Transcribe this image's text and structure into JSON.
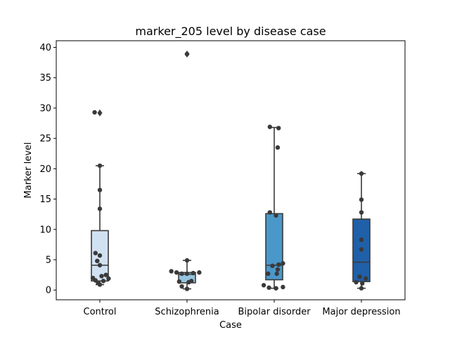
{
  "chart_data": {
    "type": "box",
    "title": "marker_205 level by disease case",
    "xlabel": "Case",
    "ylabel": "Marker level",
    "ylim": [
      -1.6,
      41.1
    ],
    "yticks": [
      0,
      5,
      10,
      15,
      20,
      25,
      30,
      35,
      40
    ],
    "grid": false,
    "categories": [
      "Control",
      "Schizophrenia",
      "Bipolar disorder",
      "Major depression"
    ],
    "colors": [
      "#d0e1f2",
      "#94c4df",
      "#4a98c9",
      "#2060a8"
    ],
    "boxes": [
      {
        "q1": 1.5,
        "median": 4.1,
        "q3": 9.8,
        "whisker_low": 0.9,
        "whisker_high": 20.5,
        "outliers": [
          29.2
        ]
      },
      {
        "q1": 1.2,
        "median": 2.6,
        "q3": 2.9,
        "whisker_low": 0.2,
        "whisker_high": 4.9,
        "outliers": [
          38.9
        ]
      },
      {
        "q1": 1.7,
        "median": 4.1,
        "q3": 12.6,
        "whisker_low": 0.3,
        "whisker_high": 26.8,
        "outliers": []
      },
      {
        "q1": 1.4,
        "median": 4.6,
        "q3": 11.7,
        "whisker_low": 0.3,
        "whisker_high": 19.2,
        "outliers": []
      }
    ],
    "points": [
      [
        {
          "dx": -0.06,
          "y": 29.3
        },
        {
          "dx": 0.0,
          "y": 20.5
        },
        {
          "dx": 0.0,
          "y": 16.5
        },
        {
          "dx": 0.0,
          "y": 13.4
        },
        {
          "dx": -0.05,
          "y": 6.1
        },
        {
          "dx": 0.0,
          "y": 5.7
        },
        {
          "dx": -0.03,
          "y": 4.8
        },
        {
          "dx": 0.0,
          "y": 4.1
        },
        {
          "dx": 0.07,
          "y": 2.5
        },
        {
          "dx": 0.02,
          "y": 2.3
        },
        {
          "dx": -0.08,
          "y": 2.0
        },
        {
          "dx": 0.1,
          "y": 1.9
        },
        {
          "dx": -0.05,
          "y": 1.6
        },
        {
          "dx": 0.04,
          "y": 1.5
        },
        {
          "dx": -0.02,
          "y": 1.2
        },
        {
          "dx": 0.0,
          "y": 0.9
        }
      ],
      [
        {
          "dx": 0.0,
          "y": 38.9
        },
        {
          "dx": 0.0,
          "y": 4.9
        },
        {
          "dx": -0.18,
          "y": 3.1
        },
        {
          "dx": -0.12,
          "y": 2.9
        },
        {
          "dx": 0.14,
          "y": 2.9
        },
        {
          "dx": -0.06,
          "y": 2.7
        },
        {
          "dx": 0.0,
          "y": 2.7
        },
        {
          "dx": 0.07,
          "y": 2.8
        },
        {
          "dx": -0.09,
          "y": 1.4
        },
        {
          "dx": 0.02,
          "y": 1.3
        },
        {
          "dx": 0.05,
          "y": 1.5
        },
        {
          "dx": -0.06,
          "y": 0.6
        },
        {
          "dx": 0.0,
          "y": 0.2
        }
      ],
      [
        {
          "dx": -0.05,
          "y": 26.9
        },
        {
          "dx": 0.05,
          "y": 26.7
        },
        {
          "dx": 0.04,
          "y": 23.5
        },
        {
          "dx": -0.05,
          "y": 12.8
        },
        {
          "dx": 0.02,
          "y": 12.3
        },
        {
          "dx": 0.1,
          "y": 4.4
        },
        {
          "dx": 0.05,
          "y": 4.2
        },
        {
          "dx": -0.02,
          "y": 4.0
        },
        {
          "dx": 0.04,
          "y": 3.4
        },
        {
          "dx": -0.07,
          "y": 2.7
        },
        {
          "dx": 0.03,
          "y": 2.7
        },
        {
          "dx": -0.12,
          "y": 0.8
        },
        {
          "dx": 0.1,
          "y": 0.5
        },
        {
          "dx": -0.06,
          "y": 0.4
        },
        {
          "dx": 0.02,
          "y": 0.3
        }
      ],
      [
        {
          "dx": 0.0,
          "y": 19.2
        },
        {
          "dx": 0.0,
          "y": 14.9
        },
        {
          "dx": 0.0,
          "y": 12.8
        },
        {
          "dx": 0.0,
          "y": 8.3
        },
        {
          "dx": 0.0,
          "y": 6.7
        },
        {
          "dx": -0.02,
          "y": 2.2
        },
        {
          "dx": 0.05,
          "y": 1.9
        },
        {
          "dx": -0.06,
          "y": 1.3
        },
        {
          "dx": 0.01,
          "y": 1.1
        },
        {
          "dx": 0.0,
          "y": 0.3
        }
      ]
    ]
  }
}
